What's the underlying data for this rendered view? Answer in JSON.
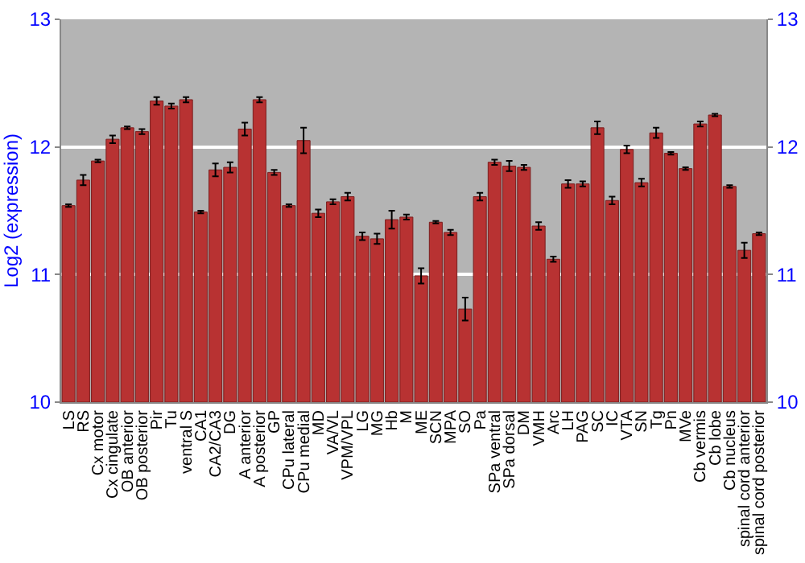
{
  "chart_data": {
    "type": "bar",
    "ylabel": "Log2 (expression)",
    "categories": [
      "LS",
      "RS",
      "Cx motor",
      "Cx cingulate",
      "OB anterior",
      "OB posterior",
      "Pir",
      "Tu",
      "ventral S",
      "CA1",
      "CA2/CA3",
      "DG",
      "A anterior",
      "A posterior",
      "GP",
      "CPu lateral",
      "CPu medial",
      "MD",
      "VA/VL",
      "VPM/VPL",
      "LG",
      "MG",
      "Hb",
      "M",
      "ME",
      "SCN",
      "MPA",
      "SO",
      "Pa",
      "SPa ventral",
      "SPa dorsal",
      "DM",
      "VMH",
      "Arc",
      "LH",
      "PAG",
      "SC",
      "IC",
      "VTA",
      "SN",
      "Tg",
      "Pn",
      "MVe",
      "Cb vermis",
      "Cb lobe",
      "Cb nucleus",
      "spinal cord anterior",
      "spinal cord posterior"
    ],
    "values": [
      11.54,
      11.74,
      11.89,
      12.06,
      12.15,
      12.12,
      12.36,
      12.32,
      12.37,
      11.49,
      11.82,
      11.84,
      12.14,
      12.37,
      11.8,
      11.54,
      12.05,
      11.48,
      11.57,
      11.61,
      11.3,
      11.28,
      11.43,
      11.45,
      10.99,
      11.41,
      11.33,
      10.73,
      11.61,
      11.88,
      11.85,
      11.84,
      11.38,
      11.12,
      11.71,
      11.71,
      12.15,
      11.58,
      11.98,
      11.72,
      12.11,
      11.95,
      11.83,
      12.18,
      12.25,
      11.69,
      11.19,
      11.32
    ],
    "errors": [
      0.01,
      0.04,
      0.01,
      0.03,
      0.01,
      0.02,
      0.03,
      0.02,
      0.02,
      0.01,
      0.05,
      0.04,
      0.05,
      0.02,
      0.02,
      0.01,
      0.1,
      0.03,
      0.02,
      0.03,
      0.03,
      0.04,
      0.07,
      0.02,
      0.06,
      0.01,
      0.02,
      0.09,
      0.03,
      0.02,
      0.04,
      0.02,
      0.03,
      0.02,
      0.03,
      0.02,
      0.05,
      0.03,
      0.03,
      0.03,
      0.04,
      0.01,
      0.01,
      0.02,
      0.01,
      0.01,
      0.06,
      0.01
    ],
    "color": "#b83232",
    "ylim": [
      10,
      13
    ],
    "yticks": [
      10,
      11,
      12,
      13
    ],
    "y2lim": [
      10,
      13
    ],
    "y2ticks": [
      10,
      11,
      12,
      13
    ],
    "grid": "y"
  }
}
